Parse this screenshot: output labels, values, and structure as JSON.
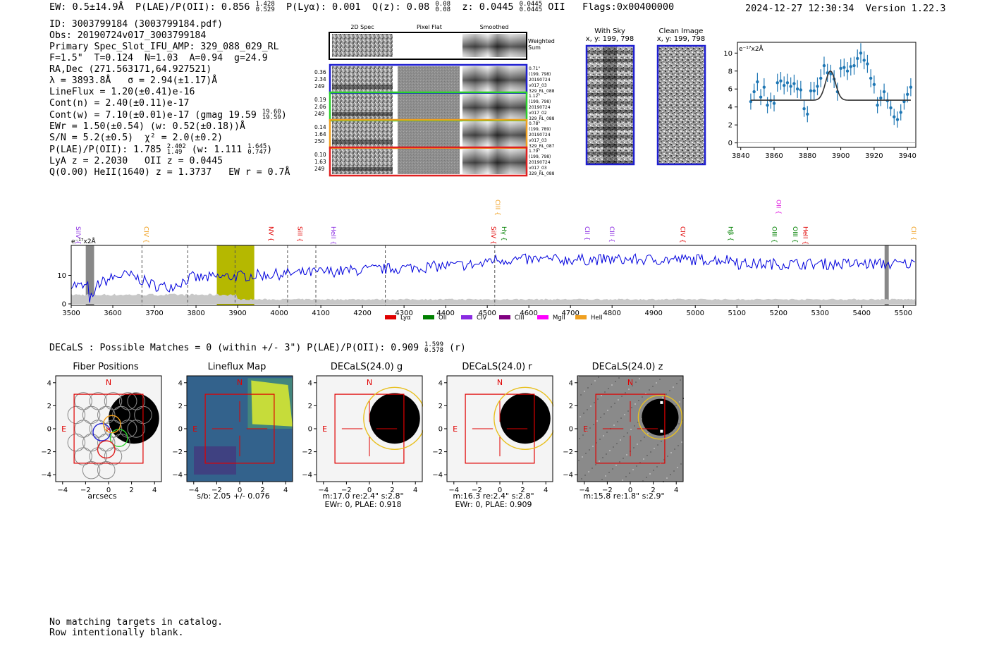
{
  "header": {
    "ew": "EW: 0.5±14.9Å",
    "plae_label": "P(LAE)/P(OII): 0.856",
    "plae_hi": "1.428",
    "plae_lo": "0.529",
    "plya": "P(Lyα): 0.001",
    "qz_label": "Q(z): 0.08",
    "qz_hi": "0.08",
    "qz_lo": "0.08",
    "z_label": "z: 0.0445",
    "z_hi": "0.0445",
    "z_lo": "0.0445",
    "z_line": "OII",
    "flags": "Flags:0x00400000",
    "timestamp": "2024-12-27 12:30:34",
    "version": "Version 1.22.3"
  },
  "info": {
    "id": "ID: 3003799184 (3003799184.pdf)",
    "obs": "Obs: 20190724v017_3003799184",
    "primary": "Primary Spec_Slot_IFU_AMP: 329_088_029_RL",
    "fwhm": "F=1.5\"  T=0.124  N=1.03  A=0.94  g=24.9",
    "radec": "RA,Dec (271.563171,64.927521)",
    "lambda": "λ = 3893.8Å   σ = 2.94(±1.17)Å",
    "lineflux": "LineFlux = 1.20(±0.41)e-16",
    "contn": "Cont(n) = 2.40(±0.11)e-17",
    "contw": "Cont(w) = 7.10(±0.01)e-17 (gmag 19.59",
    "contw_hi": "19.60",
    "contw_lo": "19.59",
    "contw_end": ")",
    "ewr": "EWr = 1.50(±0.54) (w: 0.52(±0.18))Å",
    "sn": "S/N = 5.2(±0.5)  χ² = 2.0(±0.2)",
    "plae": "P(LAE)/P(OII): 1.785",
    "plae_hi": "2.402",
    "plae_lo": "1.49",
    "plae_w": " (w: 1.111",
    "plae_w_hi": "1.645",
    "plae_w_lo": "0.747",
    "plae_w_end": ")",
    "lya": "LyA z = 2.2030   OII z = 0.0445",
    "q": "Q(0.00) HeII(1640) z = 1.3737   EW r = 0.7Å"
  },
  "spec_panel": {
    "col_titles": [
      "2D Spec",
      "Pixel Flat",
      "Smoothed"
    ],
    "weighted_label": "Weighted\nSum",
    "rows": [
      {
        "left": [
          "0.36",
          "2.34",
          "249"
        ],
        "right": [
          "0.71\"",
          "(199, 798)",
          "20190724",
          "v017_03",
          "329_RL_088"
        ],
        "color": "#1f1fd0"
      },
      {
        "left": [
          "0.19",
          "2.06",
          "249"
        ],
        "right": [
          "1.12\"",
          "(199, 798)",
          "20190724",
          "v017_02",
          "329_RL_088"
        ],
        "color": "#2bd02b"
      },
      {
        "left": [
          "0.14",
          "1.64",
          "250"
        ],
        "right": [
          "0.78\"",
          "(199, 789)",
          "20190724",
          "v017_03",
          "329_RL_087"
        ],
        "color": "#f0a020"
      },
      {
        "left": [
          "0.10",
          "1.63",
          "249"
        ],
        "right": [
          "1.79\"",
          "(199, 798)",
          "20190724",
          "v017_03",
          "329_RL_088"
        ],
        "color": "#e02020"
      }
    ]
  },
  "sky_panels": [
    {
      "title": "With Sky",
      "subtitle": "x, y: 199, 798"
    },
    {
      "title": "Clean Image",
      "subtitle": "x, y: 199, 798"
    }
  ],
  "colors": {
    "accent_blue": "#1f1fd0",
    "flux_blue": "#0000dd",
    "zoom_blue": "#1f77b4",
    "olive": "#b5b800",
    "red": "#e00000"
  },
  "chart_data": [
    {
      "type": "scatter",
      "name": "zoom-fit",
      "title": "",
      "ylabel_unit": "e⁻¹⁷x2Å",
      "xlim": [
        3838,
        3945
      ],
      "ylim": [
        -0.5,
        11.2
      ],
      "x_ticks": [
        3840,
        3860,
        3880,
        3900,
        3920,
        3940
      ],
      "y_ticks": [
        0,
        2,
        4,
        6,
        8,
        10
      ],
      "points": [
        {
          "x": 3846,
          "y": 4.6,
          "e": 0.9
        },
        {
          "x": 3848,
          "y": 5.7,
          "e": 0.9
        },
        {
          "x": 3850,
          "y": 6.8,
          "e": 1.0
        },
        {
          "x": 3852,
          "y": 5.1,
          "e": 0.9
        },
        {
          "x": 3854,
          "y": 6.2,
          "e": 1.0
        },
        {
          "x": 3856,
          "y": 4.2,
          "e": 0.9
        },
        {
          "x": 3858,
          "y": 4.7,
          "e": 0.9
        },
        {
          "x": 3860,
          "y": 4.4,
          "e": 0.9
        },
        {
          "x": 3862,
          "y": 6.7,
          "e": 1.0
        },
        {
          "x": 3864,
          "y": 6.9,
          "e": 1.0
        },
        {
          "x": 3866,
          "y": 6.4,
          "e": 1.0
        },
        {
          "x": 3868,
          "y": 6.7,
          "e": 1.0
        },
        {
          "x": 3870,
          "y": 6.3,
          "e": 1.0
        },
        {
          "x": 3872,
          "y": 6.6,
          "e": 1.0
        },
        {
          "x": 3874,
          "y": 6.0,
          "e": 1.0
        },
        {
          "x": 3876,
          "y": 5.9,
          "e": 1.0
        },
        {
          "x": 3878,
          "y": 3.8,
          "e": 0.9
        },
        {
          "x": 3880,
          "y": 3.2,
          "e": 0.9
        },
        {
          "x": 3882,
          "y": 5.8,
          "e": 1.0
        },
        {
          "x": 3884,
          "y": 5.8,
          "e": 1.0
        },
        {
          "x": 3886,
          "y": 6.3,
          "e": 1.0
        },
        {
          "x": 3888,
          "y": 7.2,
          "e": 1.0
        },
        {
          "x": 3890,
          "y": 8.6,
          "e": 1.0
        },
        {
          "x": 3892,
          "y": 7.8,
          "e": 1.0
        },
        {
          "x": 3894,
          "y": 7.7,
          "e": 1.0
        },
        {
          "x": 3896,
          "y": 7.1,
          "e": 1.0
        },
        {
          "x": 3898,
          "y": 5.7,
          "e": 1.0
        },
        {
          "x": 3900,
          "y": 8.3,
          "e": 1.0
        },
        {
          "x": 3902,
          "y": 8.4,
          "e": 1.0
        },
        {
          "x": 3904,
          "y": 8.0,
          "e": 1.0
        },
        {
          "x": 3906,
          "y": 8.5,
          "e": 1.0
        },
        {
          "x": 3908,
          "y": 8.6,
          "e": 1.0
        },
        {
          "x": 3910,
          "y": 9.4,
          "e": 1.0
        },
        {
          "x": 3912,
          "y": 10.0,
          "e": 1.1
        },
        {
          "x": 3914,
          "y": 9.2,
          "e": 1.0
        },
        {
          "x": 3916,
          "y": 8.8,
          "e": 1.0
        },
        {
          "x": 3918,
          "y": 7.2,
          "e": 1.0
        },
        {
          "x": 3920,
          "y": 6.5,
          "e": 1.0
        },
        {
          "x": 3922,
          "y": 4.2,
          "e": 0.9
        },
        {
          "x": 3924,
          "y": 5.0,
          "e": 0.9
        },
        {
          "x": 3926,
          "y": 5.7,
          "e": 0.9
        },
        {
          "x": 3928,
          "y": 4.7,
          "e": 0.9
        },
        {
          "x": 3930,
          "y": 3.9,
          "e": 0.9
        },
        {
          "x": 3932,
          "y": 2.9,
          "e": 0.9
        },
        {
          "x": 3934,
          "y": 2.6,
          "e": 0.9
        },
        {
          "x": 3936,
          "y": 3.4,
          "e": 0.9
        },
        {
          "x": 3938,
          "y": 4.6,
          "e": 0.9
        },
        {
          "x": 3940,
          "y": 5.4,
          "e": 0.9
        },
        {
          "x": 3942,
          "y": 6.2,
          "e": 1.0
        }
      ],
      "fit": {
        "continuum": 4.75,
        "center": 3893.8,
        "amplitude": 3.25,
        "sigma": 2.94,
        "x_range": [
          3846,
          3942
        ]
      }
    },
    {
      "type": "line",
      "name": "full-spectrum",
      "title": "",
      "ylabel_unit": "e⁻¹⁷x2Å",
      "xlim": [
        3500,
        5530
      ],
      "ylim": [
        -0.5,
        20.5
      ],
      "x_ticks": [
        3500,
        3600,
        3700,
        3800,
        3900,
        4000,
        4100,
        4200,
        4300,
        4400,
        4500,
        4600,
        4700,
        4800,
        4900,
        5000,
        5100,
        5200,
        5300,
        5400,
        5500
      ],
      "y_ticks": [
        0,
        10
      ],
      "line_labels": [
        {
          "label": "SiIV",
          "x": 3512,
          "color": "#8a2be2"
        },
        {
          "label": "CIV",
          "x": 3675,
          "color": "#f0a020"
        },
        {
          "label": "NV",
          "x": 3975,
          "color": "#e00000"
        },
        {
          "label": "SiII",
          "x": 4045,
          "color": "#e00000"
        },
        {
          "label": "HeII",
          "x": 4125,
          "color": "#8a2be2"
        },
        {
          "label": "SiIV",
          "x": 4510,
          "color": "#e00000"
        },
        {
          "label": "CIII",
          "x": 4520,
          "color": "#f0a020",
          "raised": true
        },
        {
          "label": "Hγ",
          "x": 4535,
          "color": "#008000"
        },
        {
          "label": "CII",
          "x": 4735,
          "color": "#8a2be2"
        },
        {
          "label": "CIII",
          "x": 4795,
          "color": "#8a2be2"
        },
        {
          "label": "CIV",
          "x": 4965,
          "color": "#e00000"
        },
        {
          "label": "Hβ",
          "x": 5080,
          "color": "#008000"
        },
        {
          "label": "OIII",
          "x": 5185,
          "color": "#008000"
        },
        {
          "label": "OII",
          "x": 5195,
          "color": "#e020e0",
          "raised": true
        },
        {
          "label": "OIII",
          "x": 5235,
          "color": "#008000"
        },
        {
          "label": "HeII",
          "x": 5260,
          "color": "#e00000"
        },
        {
          "label": "CII",
          "x": 5520,
          "color": "#f0a020"
        }
      ],
      "dashed_lines": [
        3670,
        3780,
        3893.8,
        4020,
        4088,
        4255,
        4518
      ],
      "olive_band": [
        3850,
        3940
      ],
      "gray_bands": [
        [
          3535,
          3555
        ],
        [
          5455,
          5465
        ]
      ],
      "legend": [
        {
          "name": "Lyα",
          "color": "#e00000"
        },
        {
          "name": "OII",
          "color": "#008000"
        },
        {
          "name": "CIV",
          "color": "#8a2be2"
        },
        {
          "name": "CIII",
          "color": "#800080"
        },
        {
          "name": "MgII",
          "color": "#ff00ff"
        },
        {
          "name": "HeII",
          "color": "#f0a020"
        }
      ]
    }
  ],
  "decals": {
    "summary": "DECaLS : Possible Matches = 0 (within +/- 3\")  P(LAE)/P(OII): 0.909",
    "hi": "1.599",
    "lo": "0.578",
    "band": "(r)"
  },
  "cutouts": [
    {
      "title": "Fiber Positions",
      "caption": [
        "arcsecs"
      ]
    },
    {
      "title": "Lineflux Map",
      "caption": [
        "s/b: 2.05 +/- 0.076"
      ]
    },
    {
      "title": "DECaLS(24.0) g",
      "caption": [
        "m:17.0  re:2.4\"  s:2.8\"",
        "EWr: 0, PLAE: 0.918"
      ]
    },
    {
      "title": "DECaLS(24.0) r",
      "caption": [
        "m:16.3  re:2.4\"  s:2.8\"",
        "EWr: 0, PLAE: 0.909"
      ]
    },
    {
      "title": "DECaLS(24.0) z",
      "caption": [
        "m:15.8  re:1.8\"  s:2.9\""
      ]
    }
  ],
  "cutout_axis": {
    "ticks": [
      "−4",
      "−2",
      "0",
      "2",
      "4"
    ],
    "north": "N",
    "east": "E"
  },
  "footer": {
    "line1": "No matching targets in catalog.",
    "line2": "Row intentionally blank."
  }
}
